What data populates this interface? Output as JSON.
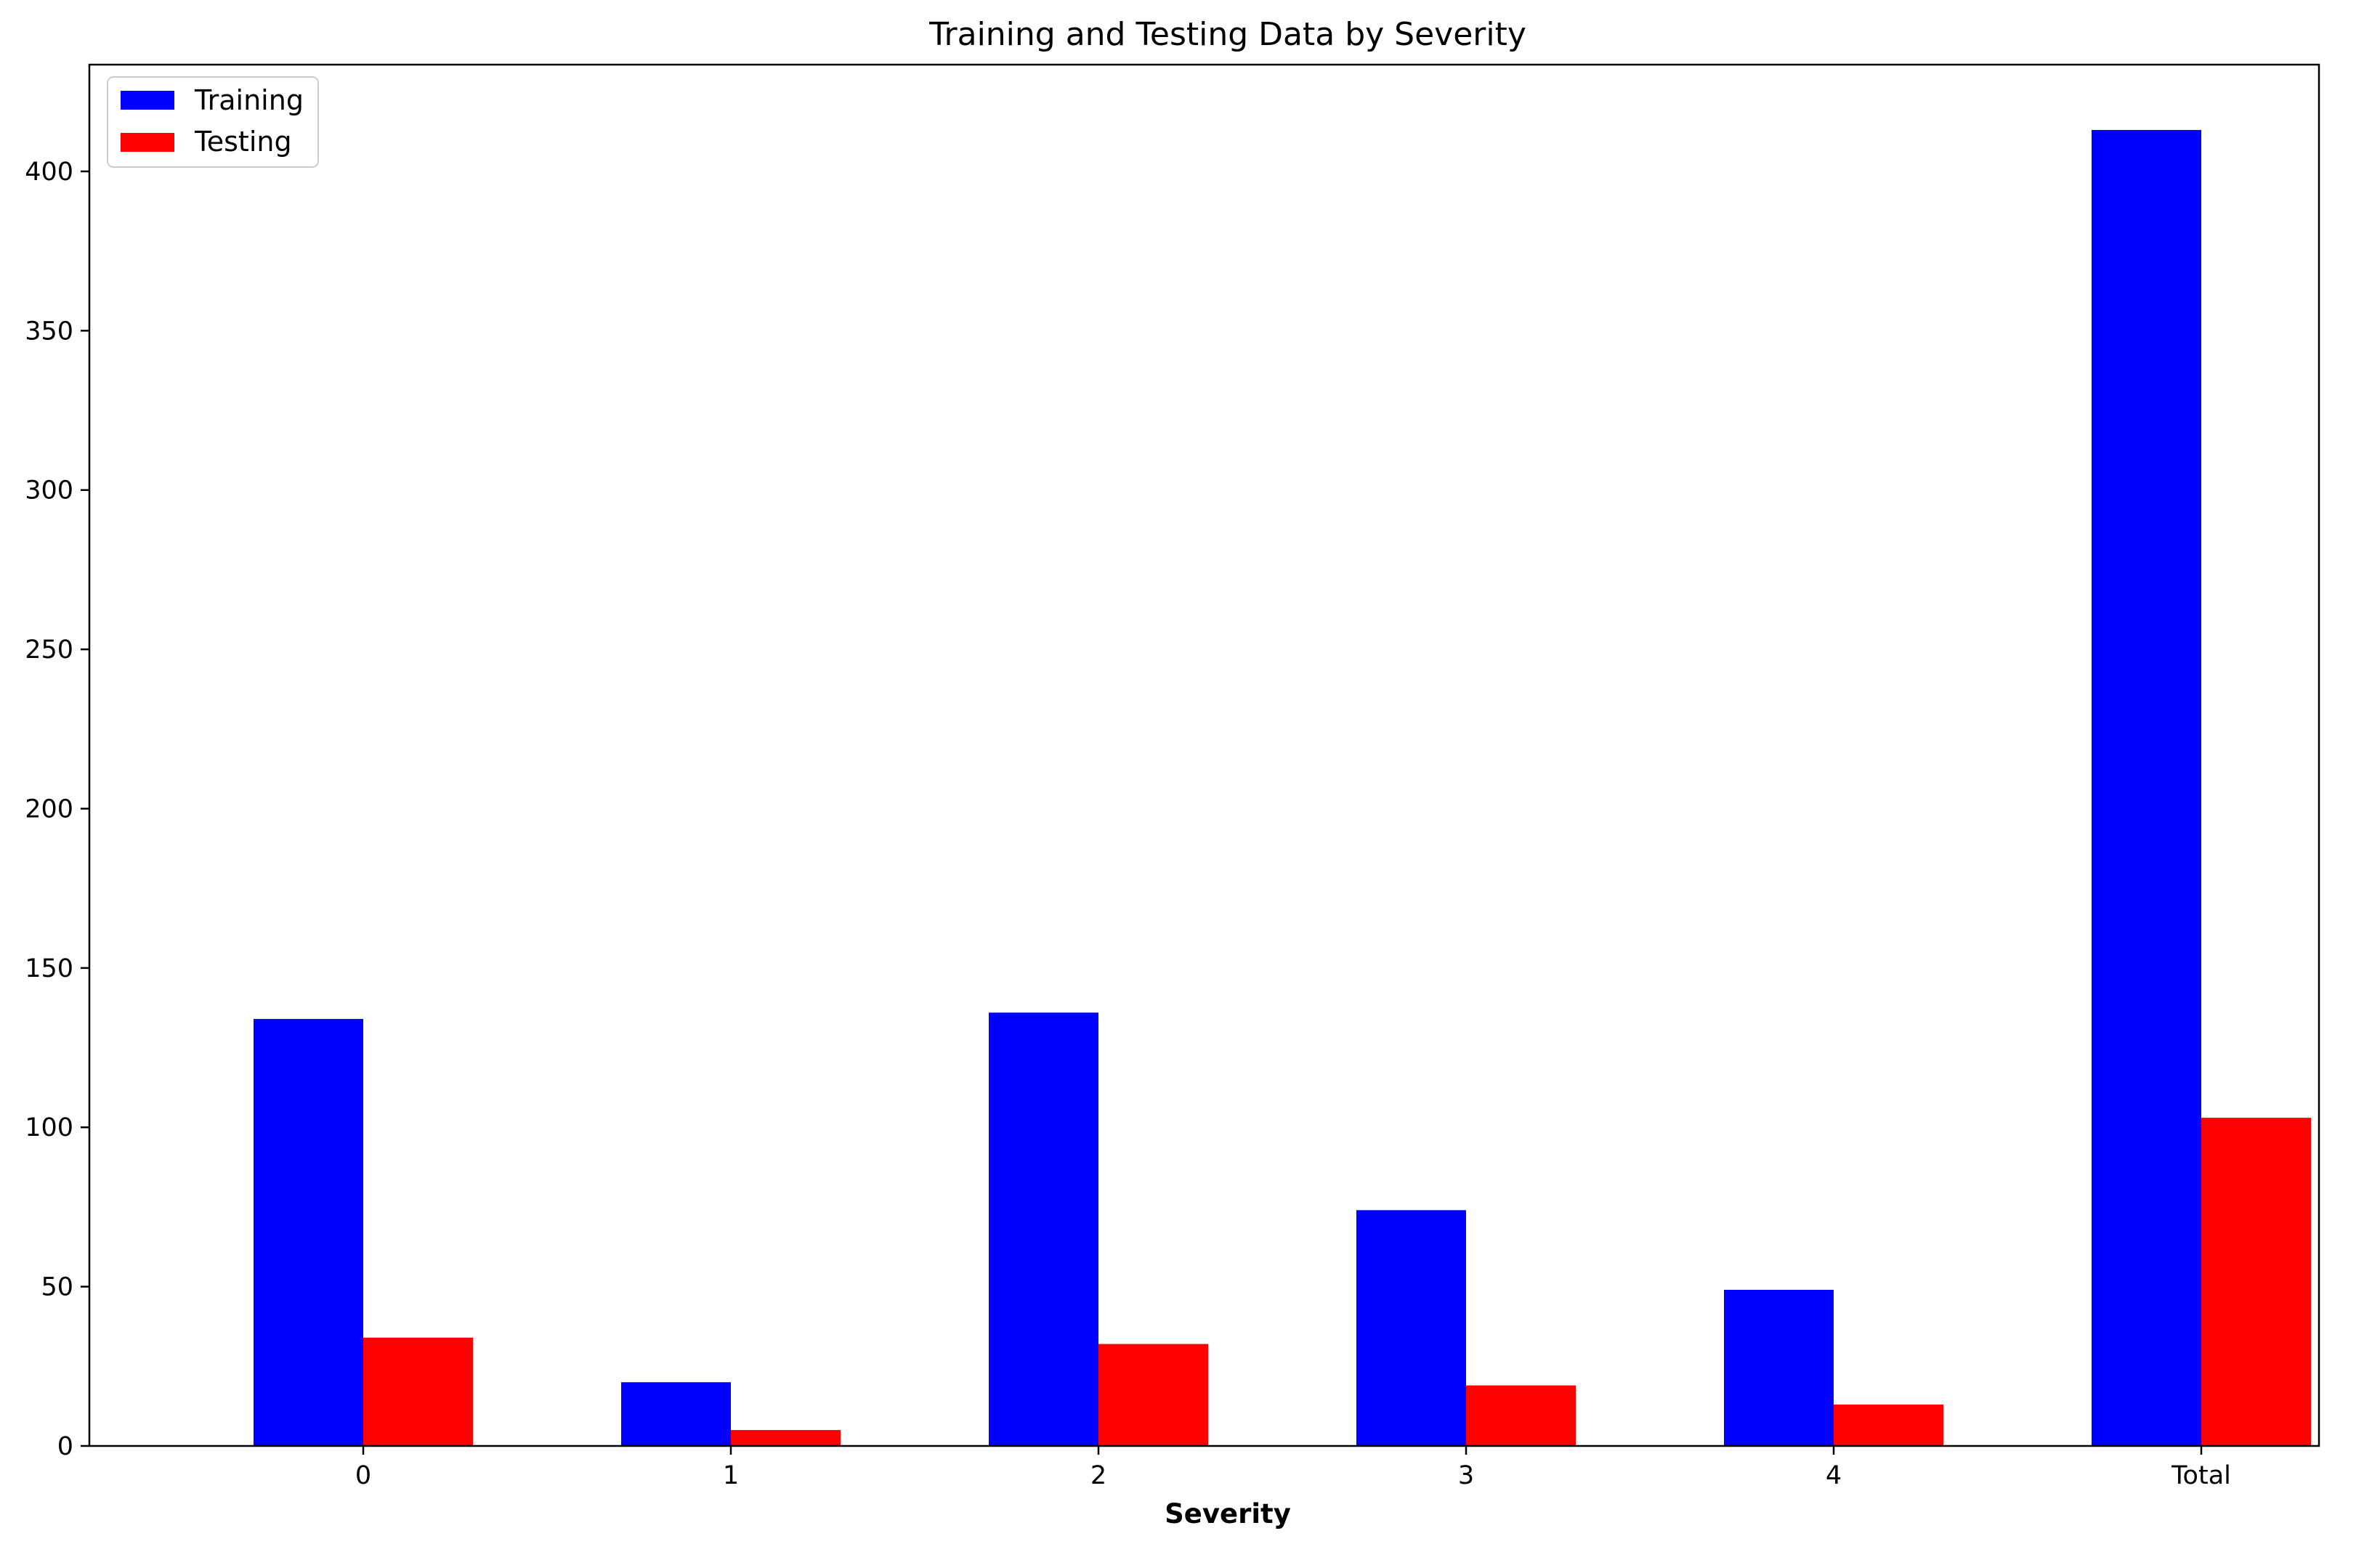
{
  "chart_data": {
    "type": "bar",
    "title": "Training and Testing Data by Severity",
    "xlabel": "Severity",
    "ylabel": "",
    "categories": [
      "0",
      "1",
      "2",
      "3",
      "4",
      "Total"
    ],
    "series": [
      {
        "name": "Training",
        "color": "#0000ff",
        "values": [
          134,
          20,
          136,
          74,
          49,
          413
        ]
      },
      {
        "name": "Testing",
        "color": "#ff0000",
        "values": [
          34,
          5,
          32,
          19,
          13,
          103
        ]
      }
    ],
    "ylim": [
      0,
      433.5
    ],
    "yticks": [
      0,
      50,
      100,
      150,
      200,
      250,
      300,
      350,
      400
    ],
    "grid": false,
    "legend_position": "top-left"
  }
}
